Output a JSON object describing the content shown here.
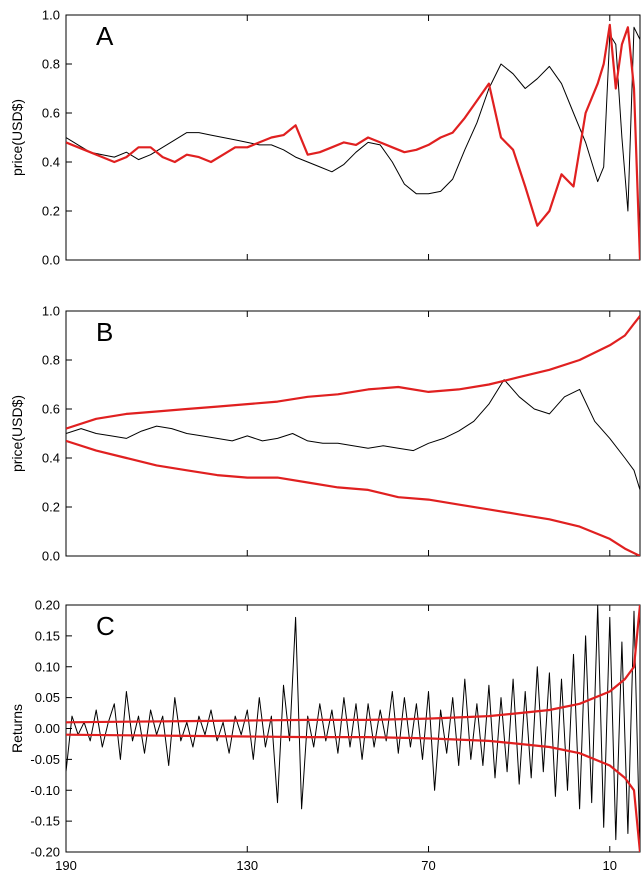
{
  "chart_data": [
    {
      "type": "line",
      "panel": "A",
      "ylabel": "price(USD$)",
      "xlim": [
        190,
        0
      ],
      "ylim": [
        0.0,
        1.0
      ],
      "yticks": [
        0.0,
        0.2,
        0.4,
        0.6,
        0.8,
        1.0
      ],
      "yticklabels": [
        "0.0",
        "0.2",
        "0.4",
        "0.6",
        "0.8",
        "1.0"
      ],
      "grid": false,
      "series": [
        {
          "color": "#000000",
          "x": [
            190,
            186,
            182,
            178,
            174,
            170,
            166,
            162,
            158,
            154,
            150,
            146,
            142,
            138,
            134,
            130,
            126,
            122,
            118,
            114,
            110,
            106,
            102,
            98,
            94,
            90,
            86,
            82,
            78,
            74,
            70,
            66,
            62,
            58,
            54,
            50,
            46,
            42,
            38,
            34,
            30,
            26,
            22,
            18,
            14,
            12,
            10,
            8,
            6,
            4,
            2,
            0
          ],
          "y": [
            0.5,
            0.47,
            0.44,
            0.43,
            0.42,
            0.44,
            0.41,
            0.43,
            0.46,
            0.49,
            0.52,
            0.52,
            0.51,
            0.5,
            0.49,
            0.48,
            0.47,
            0.47,
            0.45,
            0.42,
            0.4,
            0.38,
            0.36,
            0.39,
            0.44,
            0.48,
            0.47,
            0.4,
            0.31,
            0.27,
            0.27,
            0.28,
            0.33,
            0.45,
            0.56,
            0.7,
            0.8,
            0.76,
            0.7,
            0.74,
            0.79,
            0.72,
            0.6,
            0.48,
            0.32,
            0.38,
            0.92,
            0.88,
            0.5,
            0.2,
            0.95,
            0.9
          ]
        },
        {
          "color": "#e02020",
          "x": [
            190,
            186,
            182,
            178,
            174,
            170,
            166,
            162,
            158,
            154,
            150,
            146,
            142,
            138,
            134,
            130,
            126,
            122,
            118,
            114,
            110,
            106,
            102,
            98,
            94,
            90,
            86,
            82,
            78,
            74,
            70,
            66,
            62,
            58,
            54,
            50,
            46,
            42,
            38,
            34,
            30,
            26,
            22,
            18,
            14,
            12,
            10,
            8,
            6,
            4,
            2,
            0
          ],
          "y": [
            0.48,
            0.46,
            0.44,
            0.42,
            0.4,
            0.42,
            0.46,
            0.46,
            0.42,
            0.4,
            0.43,
            0.42,
            0.4,
            0.43,
            0.46,
            0.46,
            0.48,
            0.5,
            0.51,
            0.55,
            0.43,
            0.44,
            0.46,
            0.48,
            0.47,
            0.5,
            0.48,
            0.46,
            0.44,
            0.45,
            0.47,
            0.5,
            0.52,
            0.58,
            0.65,
            0.72,
            0.5,
            0.45,
            0.3,
            0.14,
            0.2,
            0.35,
            0.3,
            0.6,
            0.72,
            0.8,
            0.96,
            0.7,
            0.88,
            0.95,
            0.7,
            0.0
          ]
        }
      ]
    },
    {
      "type": "line",
      "panel": "B",
      "ylabel": "price(USD$)",
      "xlim": [
        190,
        0
      ],
      "ylim": [
        0.0,
        1.0
      ],
      "yticks": [
        0.0,
        0.2,
        0.4,
        0.6,
        0.8,
        1.0
      ],
      "yticklabels": [
        "0.0",
        "0.2",
        "0.4",
        "0.6",
        "0.8",
        "1.0"
      ],
      "grid": false,
      "series": [
        {
          "color": "#000000",
          "x": [
            190,
            185,
            180,
            175,
            170,
            165,
            160,
            155,
            150,
            145,
            140,
            135,
            130,
            125,
            120,
            115,
            110,
            105,
            100,
            95,
            90,
            85,
            80,
            75,
            70,
            65,
            60,
            55,
            50,
            45,
            40,
            35,
            30,
            25,
            20,
            15,
            10,
            5,
            2,
            0
          ],
          "y": [
            0.5,
            0.52,
            0.5,
            0.49,
            0.48,
            0.51,
            0.53,
            0.52,
            0.5,
            0.49,
            0.48,
            0.47,
            0.49,
            0.47,
            0.48,
            0.5,
            0.47,
            0.46,
            0.46,
            0.45,
            0.44,
            0.45,
            0.44,
            0.43,
            0.46,
            0.48,
            0.51,
            0.55,
            0.62,
            0.72,
            0.65,
            0.6,
            0.58,
            0.65,
            0.68,
            0.55,
            0.48,
            0.4,
            0.35,
            0.27
          ]
        },
        {
          "color": "#e02020",
          "x": [
            190,
            180,
            170,
            160,
            150,
            140,
            130,
            120,
            110,
            100,
            90,
            80,
            70,
            60,
            50,
            40,
            30,
            20,
            10,
            5,
            0
          ],
          "y": [
            0.52,
            0.56,
            0.58,
            0.59,
            0.6,
            0.61,
            0.62,
            0.63,
            0.65,
            0.66,
            0.68,
            0.69,
            0.67,
            0.68,
            0.7,
            0.73,
            0.76,
            0.8,
            0.86,
            0.9,
            0.98
          ]
        },
        {
          "color": "#e02020",
          "x": [
            190,
            180,
            170,
            160,
            150,
            140,
            130,
            120,
            110,
            100,
            90,
            80,
            70,
            60,
            50,
            40,
            30,
            20,
            10,
            5,
            0
          ],
          "y": [
            0.47,
            0.43,
            0.4,
            0.37,
            0.35,
            0.33,
            0.32,
            0.32,
            0.3,
            0.28,
            0.27,
            0.24,
            0.23,
            0.21,
            0.19,
            0.17,
            0.15,
            0.12,
            0.07,
            0.03,
            0.0
          ]
        }
      ]
    },
    {
      "type": "line",
      "panel": "C",
      "ylabel": "Returns",
      "xlim": [
        190,
        0
      ],
      "ylim": [
        -0.2,
        0.2
      ],
      "yticks": [
        -0.2,
        -0.15,
        -0.1,
        -0.05,
        0.0,
        0.05,
        0.1,
        0.15,
        0.2
      ],
      "yticklabels": [
        "-0.20",
        "-0.15",
        "-0.10",
        "-0.05",
        "0.00",
        "0.05",
        "0.10",
        "0.15",
        "0.20"
      ],
      "xticks": [
        190,
        130,
        70,
        10
      ],
      "xticklabels": [
        "190",
        "130",
        "70",
        "10"
      ],
      "grid": false,
      "series": [
        {
          "color": "#000000",
          "x": [
            190,
            188,
            186,
            184,
            182,
            180,
            178,
            176,
            174,
            172,
            170,
            168,
            166,
            164,
            162,
            160,
            158,
            156,
            154,
            152,
            150,
            148,
            146,
            144,
            142,
            140,
            138,
            136,
            134,
            132,
            130,
            128,
            126,
            124,
            122,
            120,
            118,
            116,
            114,
            112,
            110,
            108,
            106,
            104,
            102,
            100,
            98,
            96,
            94,
            92,
            90,
            88,
            86,
            84,
            82,
            80,
            78,
            76,
            74,
            72,
            70,
            68,
            66,
            64,
            62,
            60,
            58,
            56,
            54,
            52,
            50,
            48,
            46,
            44,
            42,
            40,
            38,
            36,
            34,
            32,
            30,
            28,
            26,
            24,
            22,
            20,
            18,
            16,
            14,
            12,
            10,
            8,
            6,
            4,
            2,
            0
          ],
          "y": [
            -0.07,
            0.02,
            -0.01,
            0.01,
            -0.02,
            0.03,
            -0.03,
            0.01,
            0.04,
            -0.05,
            0.06,
            -0.02,
            0.02,
            -0.04,
            0.03,
            -0.01,
            0.02,
            -0.06,
            0.05,
            -0.02,
            0.01,
            -0.03,
            0.02,
            -0.01,
            0.03,
            -0.02,
            0.01,
            -0.04,
            0.02,
            -0.01,
            0.03,
            -0.05,
            0.05,
            -0.03,
            0.02,
            -0.12,
            0.07,
            -0.02,
            0.18,
            -0.13,
            0.02,
            -0.03,
            0.04,
            -0.02,
            0.03,
            -0.04,
            0.05,
            -0.03,
            0.04,
            -0.05,
            0.04,
            -0.03,
            0.03,
            -0.02,
            0.06,
            -0.04,
            0.05,
            -0.03,
            0.04,
            -0.05,
            0.06,
            -0.1,
            0.03,
            -0.04,
            0.05,
            -0.06,
            0.08,
            -0.05,
            0.04,
            -0.06,
            0.07,
            -0.08,
            0.05,
            -0.07,
            0.08,
            -0.09,
            0.06,
            -0.08,
            0.1,
            -0.07,
            0.09,
            -0.11,
            0.08,
            -0.1,
            0.12,
            -0.13,
            0.15,
            -0.12,
            0.2,
            -0.16,
            0.18,
            -0.18,
            0.14,
            -0.17,
            0.19,
            -0.2
          ]
        },
        {
          "color": "#e02020",
          "x": [
            190,
            170,
            150,
            130,
            110,
            90,
            70,
            50,
            40,
            30,
            20,
            10,
            5,
            2,
            0
          ],
          "y": [
            0.01,
            0.011,
            0.012,
            0.013,
            0.014,
            0.014,
            0.016,
            0.02,
            0.025,
            0.03,
            0.04,
            0.06,
            0.08,
            0.1,
            0.2
          ]
        },
        {
          "color": "#e02020",
          "x": [
            190,
            170,
            150,
            130,
            110,
            90,
            70,
            50,
            40,
            30,
            20,
            10,
            5,
            2,
            0
          ],
          "y": [
            -0.01,
            -0.011,
            -0.012,
            -0.013,
            -0.014,
            -0.014,
            -0.016,
            -0.02,
            -0.025,
            -0.03,
            -0.04,
            -0.06,
            -0.08,
            -0.1,
            -0.2
          ]
        }
      ]
    }
  ]
}
